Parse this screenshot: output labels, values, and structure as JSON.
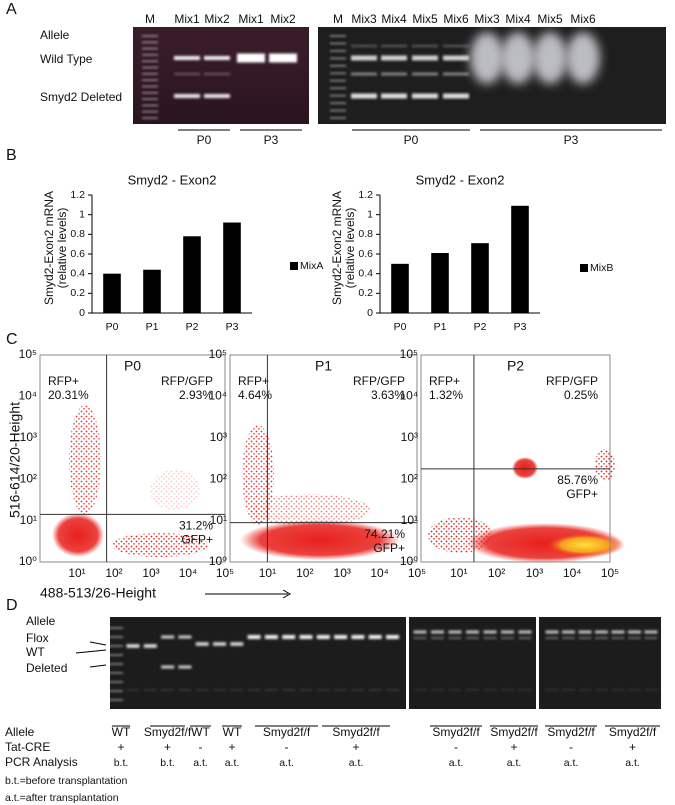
{
  "panel_a": {
    "label": "A",
    "row_labels": [
      "Allele",
      "Wild Type",
      "Smyd2 Deleted"
    ],
    "gel_left": {
      "lanes": [
        "M",
        "Mix1",
        "Mix2",
        "Mix1",
        "Mix2"
      ],
      "groups": [
        "P0",
        "P3"
      ]
    },
    "gel_right": {
      "lanes": [
        "M",
        "Mix3",
        "Mix4",
        "Mix5",
        "Mix6",
        "Mix3",
        "Mix4",
        "Mix5",
        "Mix6"
      ],
      "groups": [
        "P0",
        "P3"
      ]
    }
  },
  "panel_b_label": "B",
  "chart_data": [
    {
      "type": "bar",
      "title": "Smyd2 - Exon2",
      "y_label": [
        "Smyd2-Exon2 mRNA",
        "(relative levels)"
      ],
      "categories": [
        "P0",
        "P1",
        "P2",
        "P3"
      ],
      "series": [
        {
          "name": "MixA",
          "color": "#000000",
          "values": [
            0.4,
            0.44,
            0.78,
            0.92
          ]
        }
      ],
      "ylim": [
        0,
        1.2
      ],
      "yticks": [
        0,
        0.2,
        0.4,
        0.6,
        0.8,
        1,
        1.2
      ]
    },
    {
      "type": "bar",
      "title": "Smyd2 - Exon2",
      "y_label": [
        "Smyd2-Exon2 mRNA",
        "(relative levels)"
      ],
      "categories": [
        "P0",
        "P1",
        "P2",
        "P3"
      ],
      "series": [
        {
          "name": "MixB",
          "color": "#000000",
          "values": [
            0.5,
            0.61,
            0.71,
            1.09
          ]
        }
      ],
      "ylim": [
        0,
        1.2
      ],
      "yticks": [
        0,
        0.2,
        0.4,
        0.6,
        0.8,
        1,
        1.2
      ]
    }
  ],
  "panel_c": {
    "label": "C",
    "y_label": "516-614/20-Height",
    "x_label": "488-513/26-Height",
    "tick_labels": [
      "10⁰",
      "10¹",
      "10²",
      "10³",
      "10⁴",
      "10⁵"
    ],
    "plots": [
      {
        "title": "P0",
        "upper_left": [
          "RFP+",
          "20.31%"
        ],
        "upper_right": [
          "RFP/GFP",
          "2.93%"
        ],
        "lower_right": [
          "31.2%",
          "GFP+"
        ]
      },
      {
        "title": "P1",
        "upper_left": [
          "RFP+",
          "4.64%"
        ],
        "upper_right": [
          "RFP/GFP",
          "3.63%"
        ],
        "lower_right": [
          "74.21%",
          "GFP+"
        ]
      },
      {
        "title": "P2",
        "upper_left": [
          "RFP+",
          "1.32%"
        ],
        "upper_right": [
          "RFP/GFP",
          "0.25%"
        ],
        "lower_right": [
          "85.76%",
          "GFP+"
        ]
      }
    ]
  },
  "panel_d": {
    "label": "D",
    "row_labels": [
      "Allele",
      "Flox",
      "WT",
      "Deleted"
    ],
    "table_rows": [
      "Allele",
      "Tat-CRE",
      "PCR Analysis"
    ],
    "groups": [
      {
        "allele": "WT",
        "cre": "+",
        "pcr": "b.t."
      },
      {
        "allele": "Smyd2f/f",
        "cre": "+",
        "pcr": "b.t."
      },
      {
        "allele": "WT",
        "cre": "-",
        "pcr": "a.t."
      },
      {
        "allele": "WT",
        "cre": "+",
        "pcr": "a.t."
      },
      {
        "allele": "Smyd2f/f",
        "cre": "-",
        "pcr": "a.t."
      },
      {
        "allele": "Smyd2f/f",
        "cre": "+",
        "pcr": "a.t."
      },
      {
        "allele": "Smyd2f/f",
        "cre": "-",
        "pcr": "a.t."
      },
      {
        "allele": "Smyd2f/f",
        "cre": "+",
        "pcr": "a.t."
      },
      {
        "allele": "Smyd2f/f",
        "cre": "-",
        "pcr": "a.t."
      },
      {
        "allele": "Smyd2f/f",
        "cre": "+",
        "pcr": "a.t."
      }
    ],
    "footnotes": [
      "b.t.=before transplantation",
      "a.t.=after transplantation"
    ]
  }
}
